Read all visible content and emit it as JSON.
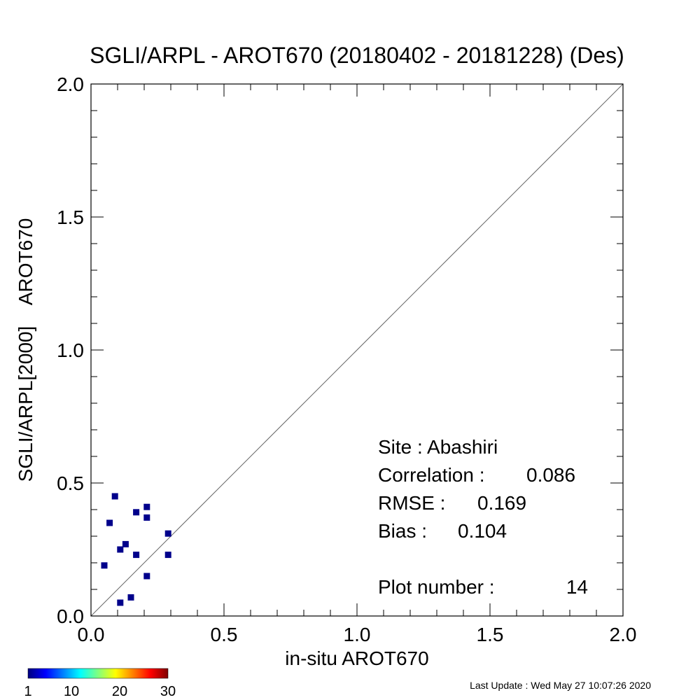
{
  "chart_data": {
    "type": "scatter",
    "title": "SGLI/ARPL - AROT670 (20180402 - 20181228) (Des)",
    "xlabel": "in-situ AROT670",
    "ylabel": "SGLI/ARPL[2000]    AROT670",
    "xlim": [
      0,
      2
    ],
    "ylim": [
      0,
      2
    ],
    "x_ticks": [
      "0.0",
      "0.5",
      "1.0",
      "1.5",
      "2.0"
    ],
    "y_ticks": [
      "0.0",
      "0.5",
      "1.0",
      "1.5",
      "2.0"
    ],
    "grid": false,
    "reference_line": "1:1",
    "point_color": "#00008b",
    "points": [
      {
        "x": 0.09,
        "y": 0.45
      },
      {
        "x": 0.07,
        "y": 0.35
      },
      {
        "x": 0.05,
        "y": 0.19
      },
      {
        "x": 0.11,
        "y": 0.25
      },
      {
        "x": 0.13,
        "y": 0.27
      },
      {
        "x": 0.17,
        "y": 0.39
      },
      {
        "x": 0.17,
        "y": 0.23
      },
      {
        "x": 0.21,
        "y": 0.41
      },
      {
        "x": 0.21,
        "y": 0.37
      },
      {
        "x": 0.21,
        "y": 0.15
      },
      {
        "x": 0.29,
        "y": 0.31
      },
      {
        "x": 0.29,
        "y": 0.23
      },
      {
        "x": 0.11,
        "y": 0.05
      },
      {
        "x": 0.15,
        "y": 0.07
      }
    ],
    "stats": {
      "site": "Site : Abashiri",
      "correlation_label": "Correlation :",
      "correlation_value": "0.086",
      "rmse_label": "RMSE :",
      "rmse_value": "0.169",
      "bias_label": "Bias :",
      "bias_value": "0.104",
      "plot_number_label": "Plot number :",
      "plot_number_value": "14"
    },
    "colorbar": {
      "ticks": [
        "1",
        "10",
        "20",
        "30"
      ],
      "range": [
        1,
        30
      ]
    }
  },
  "footer": {
    "last_update": "Last Update : Wed May 27 10:07:26 2020"
  }
}
